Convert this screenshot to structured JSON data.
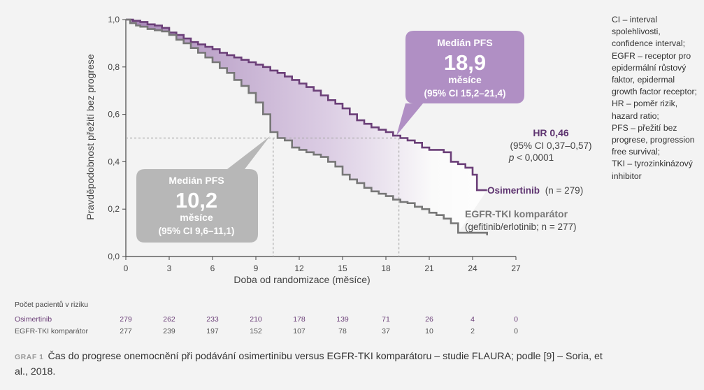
{
  "chart_data": {
    "type": "line",
    "xlabel": "Doba od randomizace (měsíce)",
    "ylabel": "Pravděpodobnost přežití bez progrese",
    "xlim": [
      0,
      27
    ],
    "ylim": [
      0,
      1
    ],
    "xticks": [
      "0",
      "3",
      "6",
      "9",
      "12",
      "15",
      "18",
      "21",
      "24",
      "27"
    ],
    "yticks": [
      "0,0",
      "0,2",
      "0,4",
      "0,6",
      "0,8",
      "1,0"
    ],
    "series": [
      {
        "name": "Osimertinib",
        "color": "#6b3f78",
        "points": [
          [
            0,
            1.0
          ],
          [
            0.5,
            0.995
          ],
          [
            1.0,
            0.99
          ],
          [
            1.5,
            0.98
          ],
          [
            2.0,
            0.975
          ],
          [
            2.5,
            0.965
          ],
          [
            3.0,
            0.945
          ],
          [
            3.5,
            0.935
          ],
          [
            4.0,
            0.92
          ],
          [
            4.5,
            0.905
          ],
          [
            5.0,
            0.895
          ],
          [
            5.5,
            0.885
          ],
          [
            6.0,
            0.875
          ],
          [
            6.5,
            0.86
          ],
          [
            7.0,
            0.85
          ],
          [
            7.5,
            0.84
          ],
          [
            8.0,
            0.83
          ],
          [
            8.5,
            0.82
          ],
          [
            9.0,
            0.81
          ],
          [
            9.5,
            0.8
          ],
          [
            10.0,
            0.785
          ],
          [
            10.5,
            0.775
          ],
          [
            11.0,
            0.76
          ],
          [
            11.5,
            0.745
          ],
          [
            12.0,
            0.73
          ],
          [
            12.5,
            0.715
          ],
          [
            13.0,
            0.7
          ],
          [
            13.5,
            0.68
          ],
          [
            14.0,
            0.66
          ],
          [
            14.5,
            0.645
          ],
          [
            15.0,
            0.625
          ],
          [
            15.5,
            0.6
          ],
          [
            16.0,
            0.575
          ],
          [
            16.5,
            0.56
          ],
          [
            17.0,
            0.545
          ],
          [
            17.5,
            0.535
          ],
          [
            18.0,
            0.525
          ],
          [
            18.5,
            0.51
          ],
          [
            19.0,
            0.5
          ],
          [
            19.5,
            0.49
          ],
          [
            20.0,
            0.48
          ],
          [
            20.5,
            0.46
          ],
          [
            21.0,
            0.45
          ],
          [
            22.0,
            0.44
          ],
          [
            22.5,
            0.4
          ],
          [
            23.0,
            0.39
          ],
          [
            23.5,
            0.375
          ],
          [
            24.0,
            0.345
          ],
          [
            24.3,
            0.28
          ],
          [
            25.0,
            0.28
          ]
        ]
      },
      {
        "name": "EGFR-TKI komparátor",
        "color": "#777777",
        "points": [
          [
            0,
            1.0
          ],
          [
            0.3,
            0.985
          ],
          [
            0.7,
            0.975
          ],
          [
            1.0,
            0.97
          ],
          [
            1.5,
            0.96
          ],
          [
            2.0,
            0.955
          ],
          [
            2.5,
            0.95
          ],
          [
            3.0,
            0.935
          ],
          [
            3.5,
            0.915
          ],
          [
            4.0,
            0.9
          ],
          [
            4.5,
            0.88
          ],
          [
            5.0,
            0.86
          ],
          [
            5.5,
            0.84
          ],
          [
            6.0,
            0.82
          ],
          [
            6.5,
            0.795
          ],
          [
            7.0,
            0.775
          ],
          [
            7.5,
            0.745
          ],
          [
            8.0,
            0.72
          ],
          [
            8.5,
            0.69
          ],
          [
            9.0,
            0.65
          ],
          [
            9.5,
            0.6
          ],
          [
            10.0,
            0.525
          ],
          [
            10.5,
            0.5
          ],
          [
            11.0,
            0.49
          ],
          [
            11.5,
            0.46
          ],
          [
            12.0,
            0.45
          ],
          [
            12.5,
            0.44
          ],
          [
            13.0,
            0.43
          ],
          [
            13.5,
            0.42
          ],
          [
            14.0,
            0.4
          ],
          [
            14.5,
            0.38
          ],
          [
            15.0,
            0.345
          ],
          [
            15.5,
            0.325
          ],
          [
            16.0,
            0.31
          ],
          [
            16.5,
            0.29
          ],
          [
            17.0,
            0.275
          ],
          [
            17.5,
            0.265
          ],
          [
            18.0,
            0.255
          ],
          [
            18.5,
            0.24
          ],
          [
            19.0,
            0.23
          ],
          [
            19.5,
            0.225
          ],
          [
            20.0,
            0.21
          ],
          [
            20.5,
            0.2
          ],
          [
            21.0,
            0.185
          ],
          [
            21.5,
            0.175
          ],
          [
            22.0,
            0.16
          ],
          [
            22.5,
            0.14
          ],
          [
            23.0,
            0.1
          ],
          [
            25.0,
            0.09
          ]
        ]
      }
    ],
    "median_lines": [
      {
        "x": 10.2,
        "y": 0.5,
        "color": "#aaaaaa"
      },
      {
        "x": 18.9,
        "y": 0.5,
        "color": "#aaaaaa"
      }
    ],
    "callouts": {
      "osimertinib": {
        "title": "Medián PFS",
        "value": "18,9",
        "unit": "měsíce",
        "ci": "(95% CI 15,2–21,4)",
        "color": "#b08fc4",
        "pointer": {
          "x": 18.9,
          "y": 0.5
        }
      },
      "comparator": {
        "title": "Medián PFS",
        "value": "10,2",
        "unit": "měsíce",
        "ci": "(95% CI 9,6–11,1)",
        "color": "#b7b7b7",
        "pointer": {
          "x": 10.2,
          "y": 0.5
        }
      }
    },
    "hr": {
      "title": "HR 0,46",
      "ci": "(95% CI 0,37–0,57)",
      "p_prefix": "p",
      "p_rest": " < 0,0001"
    },
    "series_labels": {
      "osimertinib": {
        "name": "Osimertinib",
        "n": "(n = 279)"
      },
      "comparator": {
        "name": "EGFR-TKI komparátor",
        "n": "(gefitinib/erlotinib; n = 277)"
      }
    }
  },
  "abbreviations": "CI – interval spolehlivosti, confidence interval;\nEGFR – receptor pro epidermální růstový faktor, epidermal growth factor receptor;\nHR – poměr rizik, hazard ratio;\nPFS – přežití bez progrese, progression free survival;\nTKI – tyrozinkinázový inhibitor",
  "risk_table": {
    "heading": "Počet pacientů v riziku",
    "rows": [
      {
        "label": "Osimertinib",
        "values": [
          "279",
          "262",
          "233",
          "210",
          "178",
          "139",
          "71",
          "26",
          "4",
          "0"
        ]
      },
      {
        "label": "EGFR-TKI komparátor",
        "values": [
          "277",
          "239",
          "197",
          "152",
          "107",
          "78",
          "37",
          "10",
          "2",
          "0"
        ]
      }
    ]
  },
  "caption": {
    "label": "GRAF 1",
    "text": "Čas do progrese onemocnění při podávání osimertinibu versus EGFR-TKI komparátoru – studie FLAURA; podle [9] – Soria, et al., 2018."
  }
}
